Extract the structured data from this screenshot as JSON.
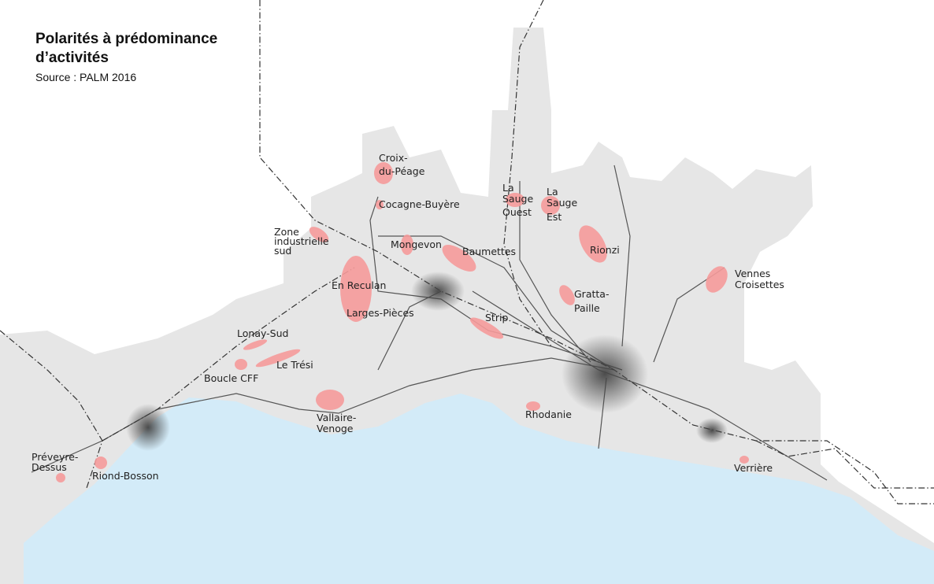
{
  "title_line1": "Polarités à prédominance",
  "title_line2": "d’activités",
  "source": "Source : PALM 2016",
  "colors": {
    "land": "#e6e6e6",
    "lake": "#d3ebf8",
    "activity_zone": "#f59a9a",
    "centre": "#555555"
  },
  "labels": {
    "croix": [
      "Croix-",
      "du-Péage"
    ],
    "cocagne": "Cocagne-Buyère",
    "zone_ind": [
      "Zone",
      "industrielle",
      "sud"
    ],
    "mongevon": "Mongevon",
    "baumettes": "Baumettes",
    "sauge_ouest": [
      "La",
      "Sauge",
      "Ouest"
    ],
    "sauge_est": [
      "La",
      "Sauge",
      "Est"
    ],
    "rionzi": "Rionzi",
    "vennes": [
      "Vennes",
      "Croisettes"
    ],
    "en_reculan": "En Reculan",
    "larges_pieces": "Larges-Pièces",
    "gratta": [
      "Gratta-",
      "Paille"
    ],
    "strip": "Strip",
    "lonay": "Lonay-Sud",
    "le_tresi": "Le Trési",
    "boucle": "Boucle CFF",
    "vallaire": [
      "Vallaire-",
      "Venoge"
    ],
    "rhodanie": "Rhodanie",
    "preveyre": [
      "Préveyre-",
      "Dessus"
    ],
    "riond": "Riond-Bosson",
    "verriere": "Verrière"
  }
}
